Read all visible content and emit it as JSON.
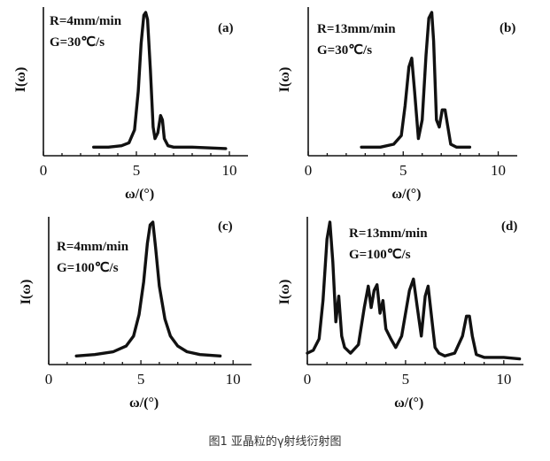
{
  "caption": "图1 亚晶粒的γ射线衍射图",
  "chart_data": [
    {
      "type": "line",
      "panel_label": "(a)",
      "annotation": [
        "R=4mm/min",
        "G=30℃/s"
      ],
      "xlabel": "ω/(°)",
      "ylabel": "I(ω)",
      "xlim": [
        0,
        11
      ],
      "x_ticks": [
        0,
        5,
        10
      ],
      "ylim": [
        0,
        1
      ],
      "x": [
        2.7,
        3.5,
        4.2,
        4.6,
        4.9,
        5.1,
        5.25,
        5.4,
        5.5,
        5.6,
        5.75,
        5.9,
        6.0,
        6.15,
        6.3,
        6.4,
        6.5,
        6.7,
        7.0,
        8.0,
        9.8
      ],
      "y": [
        0.06,
        0.06,
        0.07,
        0.09,
        0.18,
        0.45,
        0.78,
        0.98,
        1.0,
        0.95,
        0.6,
        0.2,
        0.12,
        0.16,
        0.28,
        0.25,
        0.12,
        0.07,
        0.06,
        0.06,
        0.05
      ]
    },
    {
      "type": "line",
      "panel_label": "(b)",
      "annotation": [
        "R=13mm/min",
        "G=30℃/s"
      ],
      "xlabel": "ω/(°)",
      "ylabel": "I(ω)",
      "xlim": [
        0,
        11
      ],
      "x_ticks": [
        0,
        5,
        10
      ],
      "ylim": [
        0,
        1
      ],
      "x": [
        2.8,
        3.8,
        4.5,
        4.9,
        5.1,
        5.3,
        5.45,
        5.6,
        5.8,
        6.0,
        6.2,
        6.35,
        6.5,
        6.6,
        6.75,
        6.9,
        7.05,
        7.2,
        7.35,
        7.5,
        7.8,
        8.5
      ],
      "y": [
        0.06,
        0.06,
        0.08,
        0.14,
        0.35,
        0.62,
        0.68,
        0.45,
        0.12,
        0.25,
        0.7,
        0.96,
        1.0,
        0.8,
        0.25,
        0.2,
        0.32,
        0.32,
        0.2,
        0.08,
        0.06,
        0.06
      ]
    },
    {
      "type": "line",
      "panel_label": "(c)",
      "annotation": [
        "R=4mm/min",
        "G=100℃/s"
      ],
      "xlabel": "ω/(°)",
      "ylabel": "I(ω)",
      "xlim": [
        0,
        11
      ],
      "x_ticks": [
        0,
        5,
        10
      ],
      "ylim": [
        0,
        1
      ],
      "x": [
        1.5,
        2.5,
        3.5,
        4.2,
        4.6,
        4.9,
        5.15,
        5.35,
        5.5,
        5.65,
        5.8,
        6.0,
        6.3,
        6.6,
        7.0,
        7.5,
        8.2,
        9.3
      ],
      "y": [
        0.06,
        0.07,
        0.09,
        0.13,
        0.2,
        0.35,
        0.58,
        0.85,
        0.98,
        1.0,
        0.82,
        0.55,
        0.32,
        0.2,
        0.13,
        0.09,
        0.07,
        0.06
      ]
    },
    {
      "type": "line",
      "panel_label": "(d)",
      "annotation": [
        "R=13mm/min",
        "G=100℃/s"
      ],
      "xlabel": "ω/(°)",
      "ylabel": "I(ω)",
      "xlim": [
        0,
        11
      ],
      "x_ticks": [
        0,
        5,
        10
      ],
      "ylim": [
        0,
        1
      ],
      "x": [
        0.0,
        0.3,
        0.6,
        0.8,
        1.0,
        1.15,
        1.3,
        1.45,
        1.6,
        1.75,
        1.9,
        2.2,
        2.6,
        2.9,
        3.1,
        3.25,
        3.4,
        3.55,
        3.7,
        3.85,
        4.0,
        4.25,
        4.5,
        4.8,
        5.2,
        5.4,
        5.6,
        5.8,
        6.0,
        6.15,
        6.35,
        6.5,
        6.7,
        7.0,
        7.5,
        7.9,
        8.1,
        8.25,
        8.4,
        8.6,
        9.0,
        10.0,
        10.8
      ],
      "y": [
        0.08,
        0.1,
        0.18,
        0.45,
        0.88,
        1.0,
        0.72,
        0.3,
        0.48,
        0.2,
        0.12,
        0.08,
        0.14,
        0.4,
        0.55,
        0.4,
        0.52,
        0.56,
        0.36,
        0.45,
        0.25,
        0.18,
        0.12,
        0.2,
        0.52,
        0.6,
        0.4,
        0.2,
        0.48,
        0.55,
        0.3,
        0.12,
        0.08,
        0.06,
        0.08,
        0.2,
        0.34,
        0.34,
        0.2,
        0.07,
        0.05,
        0.05,
        0.04
      ]
    }
  ]
}
